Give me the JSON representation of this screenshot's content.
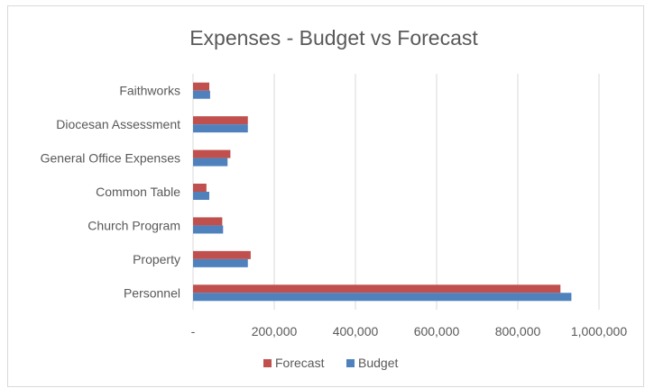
{
  "chart_data": {
    "type": "bar",
    "orientation": "horizontal",
    "title": "Expenses - Budget vs Forecast",
    "categories": [
      "Faithworks",
      "Diocesan Assessment",
      "General Office Expenses",
      "Common Table",
      "Church Program",
      "Property",
      "Personnel"
    ],
    "series": [
      {
        "name": "Forecast",
        "color": "#c0504d",
        "values": [
          40000,
          135000,
          92000,
          33000,
          72000,
          142000,
          905000
        ]
      },
      {
        "name": "Budget",
        "color": "#4f81bd",
        "values": [
          42000,
          135000,
          85000,
          40000,
          74000,
          135000,
          932000
        ]
      }
    ],
    "xlim": [
      0,
      1000000
    ],
    "x_ticks": [
      0,
      200000,
      400000,
      600000,
      800000,
      1000000
    ],
    "x_tick_labels": [
      "-",
      "200,000",
      "400,000",
      "600,000",
      "800,000",
      "1,000,000"
    ],
    "grid": true,
    "legend_position": "bottom"
  }
}
